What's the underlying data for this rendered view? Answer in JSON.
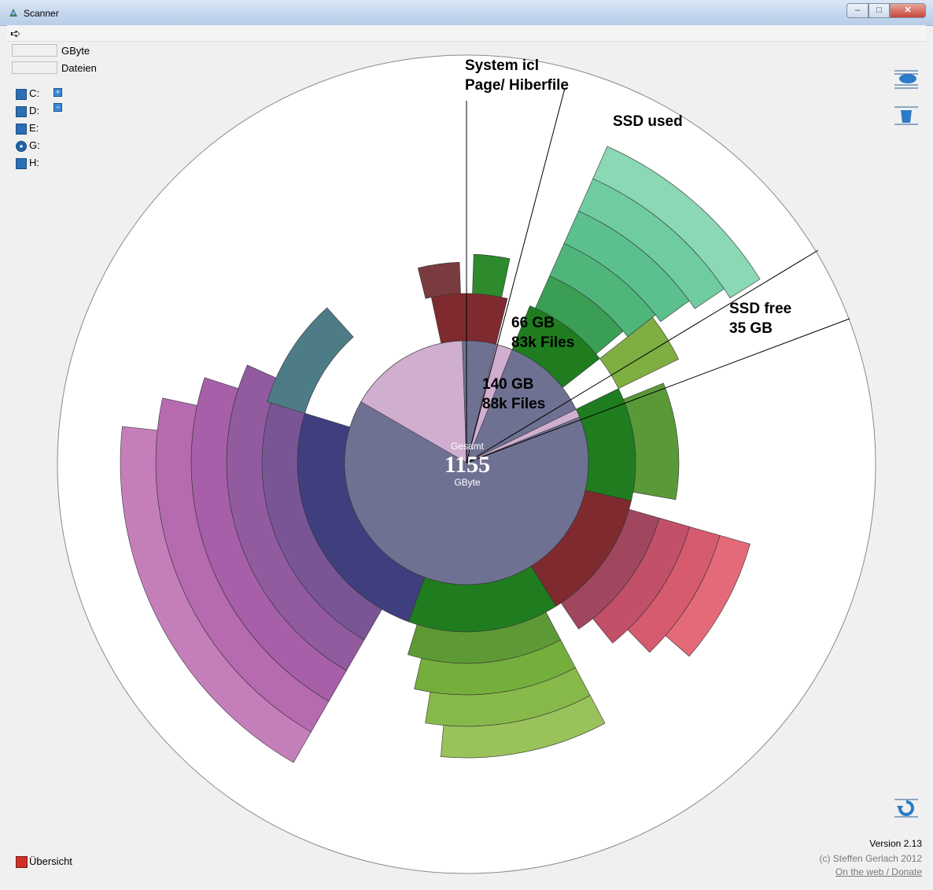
{
  "window": {
    "title": "Scanner",
    "minimize": "–",
    "maximize": "□",
    "close": "✕"
  },
  "toolbar": {
    "back_icon": "arrow-right-icon"
  },
  "stats": {
    "gbyte_label": "GByte",
    "files_label": "Dateien",
    "gbyte_value": "",
    "files_value": ""
  },
  "drives": [
    {
      "label": "C:",
      "icon": "hard-drive-icon"
    },
    {
      "label": "D:",
      "icon": "hard-drive-icon"
    },
    {
      "label": "E:",
      "icon": "hard-drive-icon"
    },
    {
      "label": "G:",
      "icon": "cd-drive-icon"
    },
    {
      "label": "H:",
      "icon": "hard-drive-icon"
    }
  ],
  "expand": {
    "plus": "+",
    "minus": "−"
  },
  "center": {
    "top_label": "Gesamt",
    "value": "1155",
    "unit": "GByte"
  },
  "annotations": {
    "system": [
      "System icl",
      "Page/ Hiberfile"
    ],
    "ssd_used": "SSD used",
    "ssd_free": [
      "SSD free",
      "35 GB"
    ],
    "used_files": [
      "66 GB",
      "83k Files"
    ],
    "total_files": [
      "140 GB",
      "88k Files"
    ]
  },
  "footer": {
    "overview": "Übersicht",
    "version": "Version 2.13",
    "copyright": "(c) Steffen Gerlach 2012",
    "web_link": "On the web / Donate"
  },
  "colors": {
    "inner_disk": "#6f7192",
    "pink": "#d0aed0",
    "dark_green": "#1f7d1f",
    "navy": "#3f3f7f",
    "dark_red": "#7e2a2e"
  }
}
